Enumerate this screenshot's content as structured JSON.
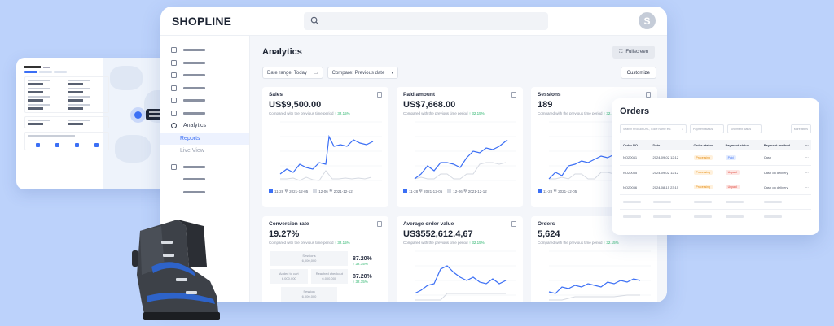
{
  "app": {
    "logo": "SHOPLINE",
    "avatar_letter": "S"
  },
  "sidebar": {
    "analytics_label": "Analytics",
    "reports_label": "Reports",
    "live_view_label": "Live View"
  },
  "page": {
    "title": "Analytics",
    "fullscreen_label": "Fullscreen",
    "date_range_label": "Date range: Today",
    "compare_label": "Compare: Previous date",
    "customize_label": "Customize"
  },
  "cards": {
    "sales": {
      "title": "Sales",
      "value": "US$9,500.00",
      "compare": "Compared with the previous time period",
      "change": "↑ 32.15%"
    },
    "paid": {
      "title": "Paid amount",
      "value": "US$7,668.00",
      "compare": "Compared with the previous time period",
      "change": "↑ 32.15%"
    },
    "sessions": {
      "title": "Sessions",
      "value": "189",
      "compare": "Compared with the previous time period",
      "change": "↑ 32.15%"
    },
    "conversion": {
      "title": "Conversion rate",
      "value": "19.27%",
      "compare": "Compared with the previous time period",
      "change": "↑ 32.15%"
    },
    "aov": {
      "title": "Average order value",
      "value": "US$552,612.4,67",
      "compare": "Compared with the previous time period",
      "change": "↑ 32.15%"
    },
    "orders": {
      "title": "Orders",
      "value": "5,624",
      "compare": "Compared with the previous time period",
      "change": "↑ 32.15%"
    }
  },
  "legend": {
    "current": "11-28 至 2021-12-05",
    "previous": "12-06 至 2021-12-12"
  },
  "funnel": {
    "pct1": "87.20%",
    "pct1_change": "↑ 32.15%",
    "pct2": "87.20%",
    "pct2_change": "↑ 32.15%",
    "box1_label": "Sessions",
    "box1_value": "6,000,000",
    "box2a_label": "Added to cart",
    "box2a_value": "6,000,000",
    "box2b_label": "Reached checkout",
    "box2b_value": "6,000,000",
    "box3_label": "Session",
    "box3_value": "6,000,000"
  },
  "orders_panel": {
    "title": "Orders",
    "search_placeholder": "Search Product URL, Code Name etc.",
    "filter1": "Payment status",
    "filter2": "Shipment status",
    "more_filter": "More filters",
    "headers": [
      "Order NO.",
      "Date",
      "Order status",
      "Payment status",
      "Payment method"
    ],
    "rows": [
      {
        "no": "NO20041",
        "date": "2024-09-02 12:12",
        "order_status": "Processing",
        "payment_status": "Paid",
        "method": "Cash"
      },
      {
        "no": "NO20035",
        "date": "2024-09-02 12:12",
        "order_status": "Processing",
        "payment_status": "Unpaid",
        "method": "Cash on delivery"
      },
      {
        "no": "NO20036",
        "date": "2024-08-15 23:15",
        "order_status": "Processing",
        "payment_status": "Unpaid",
        "method": "Cash on delivery"
      }
    ]
  },
  "colors": {
    "accent": "#3b6ff5",
    "compare_line": "#d6dae2",
    "up": "#27b36a"
  }
}
